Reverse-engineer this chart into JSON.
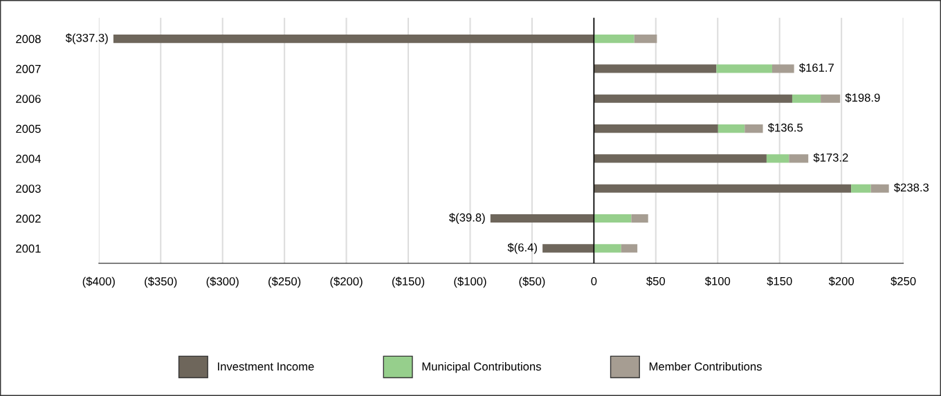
{
  "chart_data": {
    "type": "bar",
    "orientation": "horizontal",
    "stacked": true,
    "categories": [
      "2008",
      "2007",
      "2006",
      "2005",
      "2004",
      "2003",
      "2002",
      "2001"
    ],
    "series": [
      {
        "name": "Investment Income",
        "color": "#6e665b",
        "values": [
          -388.2,
          99,
          160.2,
          100.3,
          139.5,
          207.8,
          -83.6,
          -41.5
        ]
      },
      {
        "name": "Municipal Contributions",
        "color": "#96cf8c",
        "values": [
          32.6,
          45,
          23,
          21.5,
          18.1,
          15.9,
          30.2,
          22
        ]
      },
      {
        "name": "Member Contributions",
        "color": "#a69d92",
        "values": [
          18.3,
          17.7,
          15.7,
          14.7,
          15.6,
          14.6,
          13.6,
          13.1
        ]
      }
    ],
    "totals": [
      "$(337.3)",
      "$161.7",
      "$198.9",
      "$136.5",
      "$173.2",
      "$238.3",
      "$(39.8)",
      "$(6.4)"
    ],
    "xlim": [
      -400,
      250
    ],
    "xticks": [
      {
        "value": -400,
        "label": "($400)"
      },
      {
        "value": -350,
        "label": "($350)"
      },
      {
        "value": -300,
        "label": "($300)"
      },
      {
        "value": -250,
        "label": "($250)"
      },
      {
        "value": -200,
        "label": "($200)"
      },
      {
        "value": -150,
        "label": "($150)"
      },
      {
        "value": -100,
        "label": "($100)"
      },
      {
        "value": -50,
        "label": "($50)"
      },
      0,
      {
        "value": 50,
        "label": "$50"
      },
      {
        "value": 100,
        "label": "$100"
      },
      {
        "value": 150,
        "label": "$150"
      },
      {
        "value": 200,
        "label": "$200"
      },
      {
        "value": 250,
        "label": "$250"
      }
    ],
    "grid": "x",
    "legend": "bottom"
  }
}
